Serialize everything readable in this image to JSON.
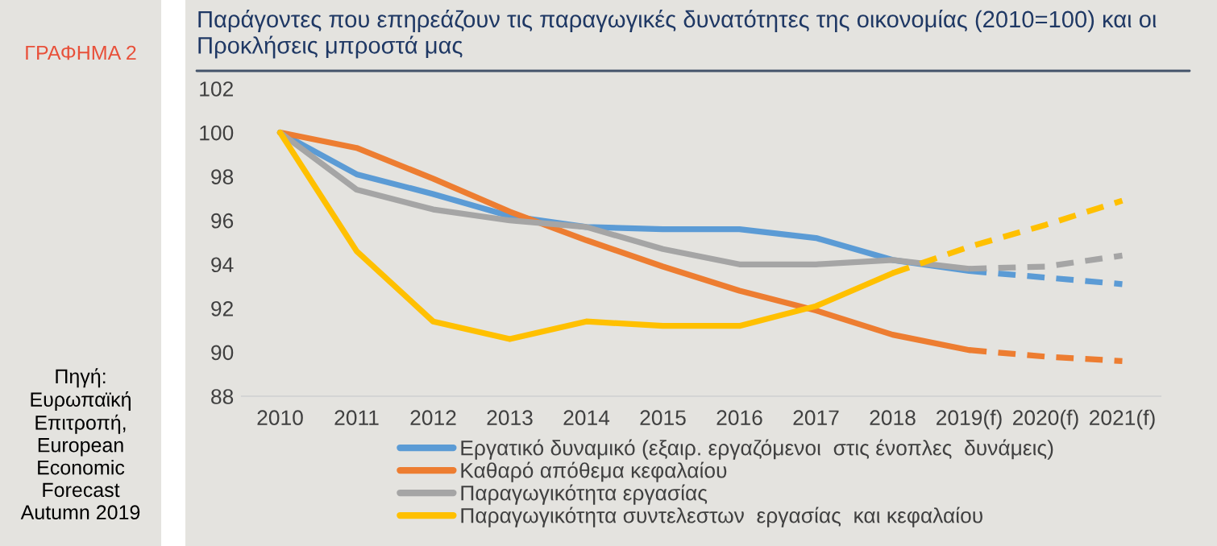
{
  "chart_data": {
    "type": "line",
    "title": "Παράγοντες που επηρεάζουν τις παραγωγικές δυνατότητες της οικονομίας (2010=100) και οι Προκλήσεις μπροστά μας",
    "annotations": [
      "ΓΡΑΦΗΜΑ 2",
      "Πηγή:\nΕυρωπαϊκή\nΕπιτροπή,\nEuropean\nEconomic\nForecast\nAutumn 2019"
    ],
    "categories": [
      "2010",
      "2011",
      "2012",
      "2013",
      "2014",
      "2015",
      "2016",
      "2017",
      "2018",
      "2019(f)",
      "2020(f)",
      "2021(f)"
    ],
    "series": [
      {
        "name": "Εργατικό δυναμικό (εξαιρ. εργαζόμενοι  στις ένοπλες  δυνάμεις)",
        "color": "#5b9bd5",
        "line_style": "solid",
        "values": [
          100,
          98.1,
          97.2,
          96.2,
          95.7,
          95.6,
          95.6,
          95.2,
          94.2,
          93.7,
          null,
          null
        ]
      },
      {
        "name": "Καθαρό απόθεμα κεφαλαίου",
        "color": "#ed7d31",
        "line_style": "solid",
        "values": [
          100,
          99.3,
          97.9,
          96.4,
          95.1,
          93.9,
          92.8,
          91.9,
          90.8,
          90.1,
          null,
          null
        ]
      },
      {
        "name": "Παραγωγικότητα εργασίας",
        "color": "#a5a5a5",
        "line_style": "solid",
        "values": [
          100,
          97.4,
          96.5,
          96.0,
          95.7,
          94.7,
          94.0,
          94.0,
          94.2,
          93.8,
          null,
          null
        ]
      },
      {
        "name": "Παραγωγικότητα συντελεστων  εργασίας  και κεφαλαίου",
        "color": "#ffc000",
        "line_style": "solid",
        "values": [
          100,
          94.6,
          91.4,
          90.6,
          91.4,
          91.2,
          91.2,
          92.1,
          93.6,
          null,
          null,
          null
        ]
      },
      {
        "color": "#5b9bd5",
        "line_style": "dashed",
        "values": [
          null,
          null,
          null,
          null,
          null,
          null,
          null,
          null,
          null,
          93.7,
          93.4,
          93.1
        ]
      },
      {
        "color": "#ed7d31",
        "line_style": "dashed",
        "values": [
          null,
          null,
          null,
          null,
          null,
          null,
          null,
          null,
          null,
          90.1,
          89.8,
          89.6
        ]
      },
      {
        "color": "#a5a5a5",
        "line_style": "dashed",
        "values": [
          null,
          null,
          null,
          null,
          null,
          null,
          null,
          null,
          null,
          93.8,
          93.9,
          94.4
        ]
      },
      {
        "color": "#ffc000",
        "line_style": "dashed",
        "values": [
          null,
          null,
          null,
          null,
          null,
          null,
          null,
          null,
          93.6,
          94.8,
          95.8,
          96.9
        ]
      }
    ],
    "ylim": [
      88,
      102
    ],
    "yticks": [
      88,
      90,
      92,
      94,
      96,
      98,
      100,
      102
    ],
    "grid": false,
    "legend": "bottom"
  }
}
